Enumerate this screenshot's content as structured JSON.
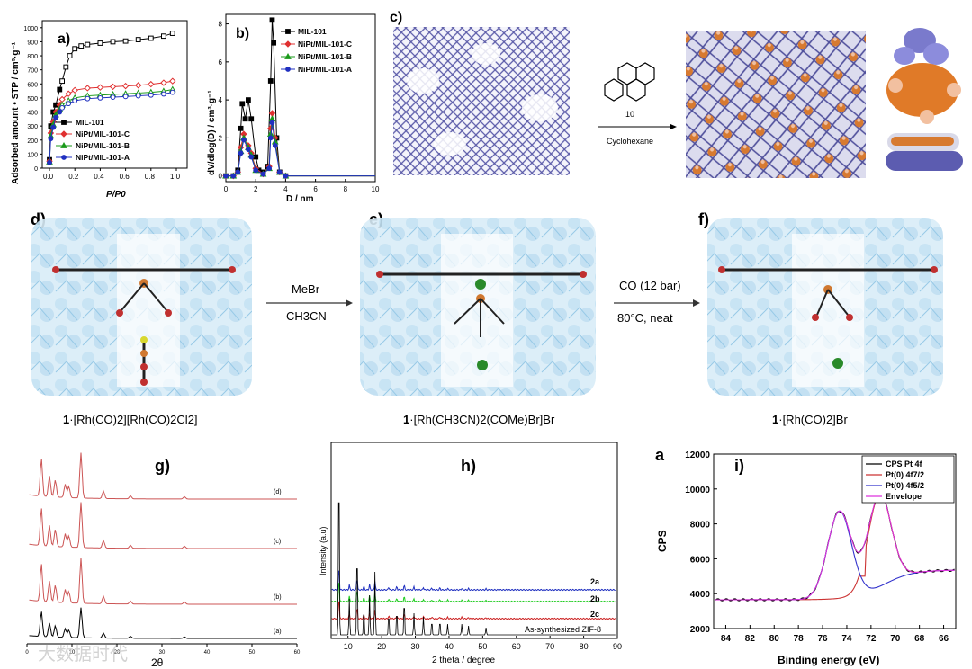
{
  "figure": {
    "panel_letters": {
      "a": "a)",
      "b": "b)",
      "c": "c)",
      "d": "d)",
      "e": "e)",
      "f": "f)",
      "g": "g)",
      "h": "h)",
      "i": "i)",
      "i_alt": "a"
    },
    "watermark": "大数据时代"
  },
  "panel_c": {
    "molecule_number": "10",
    "solvent": "Cyclohexane"
  },
  "panel_def": {
    "arrow1_top": "MeBr",
    "arrow1_bottom": "CH3CN",
    "arrow2_top": "CO (12 bar)",
    "arrow2_bottom": "80°C, neat",
    "caption_d_bold": "1",
    "caption_d": "·[Rh(CO)2][Rh(CO)2Cl2]",
    "caption_e_bold": "1",
    "caption_e": "·[Rh(CH3CN)2(COMe)Br]Br",
    "caption_f_bold": "1",
    "caption_f": "·[Rh(CO)2]Br"
  },
  "chart_data": [
    {
      "id": "a",
      "type": "line",
      "ylabel": "Adsorbed amount • STP / cm³·g⁻¹",
      "xlabel": "P/P0",
      "xlim": [
        0,
        1.05
      ],
      "ylim": [
        0,
        1050
      ],
      "xticks": [
        "0.0",
        "0.2",
        "0.4",
        "0.6",
        "0.8",
        "1.0"
      ],
      "yticks": [
        "0",
        "100",
        "200",
        "300",
        "400",
        "500",
        "600",
        "700",
        "800",
        "900",
        "1000"
      ],
      "series": [
        {
          "name": "MIL-101",
          "color": "#000000",
          "marker": "square",
          "x": [
            0,
            0.01,
            0.03,
            0.05,
            0.08,
            0.1,
            0.13,
            0.16,
            0.2,
            0.25,
            0.3,
            0.4,
            0.5,
            0.6,
            0.7,
            0.8,
            0.9,
            0.97
          ],
          "y": [
            60,
            300,
            400,
            450,
            560,
            620,
            720,
            800,
            850,
            870,
            880,
            890,
            900,
            905,
            915,
            925,
            940,
            960
          ]
        },
        {
          "name": "NiPt/MIL-101-C",
          "color": "#e03030",
          "marker": "diamond",
          "x": [
            0,
            0.01,
            0.03,
            0.05,
            0.08,
            0.1,
            0.15,
            0.2,
            0.3,
            0.4,
            0.5,
            0.6,
            0.7,
            0.8,
            0.9,
            0.97
          ],
          "y": [
            50,
            250,
            330,
            400,
            450,
            490,
            530,
            555,
            570,
            575,
            580,
            585,
            590,
            598,
            608,
            620
          ]
        },
        {
          "name": "NiPt/MIL-101-B",
          "color": "#1a9a1a",
          "marker": "triangle",
          "x": [
            0,
            0.01,
            0.03,
            0.05,
            0.08,
            0.1,
            0.15,
            0.2,
            0.3,
            0.4,
            0.5,
            0.6,
            0.7,
            0.8,
            0.9,
            0.97
          ],
          "y": [
            45,
            230,
            310,
            380,
            420,
            450,
            480,
            500,
            515,
            520,
            525,
            530,
            535,
            540,
            548,
            560
          ]
        },
        {
          "name": "NiPt/MIL-101-A",
          "color": "#2030c0",
          "marker": "circle",
          "x": [
            0,
            0.01,
            0.03,
            0.05,
            0.08,
            0.1,
            0.15,
            0.2,
            0.3,
            0.4,
            0.5,
            0.6,
            0.7,
            0.8,
            0.9,
            0.97
          ],
          "y": [
            40,
            210,
            290,
            360,
            400,
            430,
            460,
            480,
            495,
            500,
            505,
            510,
            515,
            520,
            528,
            540
          ]
        }
      ]
    },
    {
      "id": "b",
      "type": "line",
      "ylabel": "dV/dlog(D) / cm³·g⁻¹",
      "xlabel": "D / nm",
      "xlim": [
        0,
        10
      ],
      "ylim": [
        -0.3,
        8.5
      ],
      "xticks": [
        "0",
        "2",
        "4",
        "6",
        "8",
        "10"
      ],
      "yticks": [
        "0",
        "2",
        "4",
        "6",
        "8"
      ],
      "series": [
        {
          "name": "MIL-101",
          "color": "#000000",
          "marker": "square",
          "x": [
            0,
            0.5,
            0.8,
            1.0,
            1.1,
            1.3,
            1.5,
            1.7,
            2.0,
            2.2,
            2.5,
            2.8,
            3.0,
            3.1,
            3.2,
            3.4,
            3.6,
            4,
            5,
            6,
            8,
            10
          ],
          "y": [
            0,
            0,
            0.3,
            2.5,
            3.8,
            3.0,
            4.0,
            3.0,
            1.0,
            0.3,
            0.2,
            0.5,
            5.0,
            8.2,
            7.0,
            2.0,
            0.2,
            0,
            0,
            0,
            0,
            0
          ]
        },
        {
          "name": "NiPt/MIL-101-C",
          "color": "#e03030",
          "marker": "diamond",
          "x": [
            0,
            0.5,
            0.8,
            1.0,
            1.2,
            1.5,
            1.7,
            2.0,
            2.5,
            2.9,
            3.0,
            3.1,
            3.3,
            3.6,
            4,
            6,
            8,
            10
          ],
          "y": [
            0,
            0,
            0.2,
            1.5,
            2.2,
            1.6,
            1.2,
            0.4,
            0.1,
            0.5,
            2.5,
            3.3,
            2.0,
            0.2,
            0,
            0,
            0,
            0
          ]
        },
        {
          "name": "NiPt/MIL-101-B",
          "color": "#1a9a1a",
          "marker": "triangle",
          "x": [
            0,
            0.5,
            0.8,
            1.0,
            1.2,
            1.5,
            1.7,
            2.0,
            2.5,
            2.9,
            3.0,
            3.1,
            3.3,
            3.6,
            4,
            6,
            8,
            10
          ],
          "y": [
            0,
            0,
            0.2,
            1.3,
            2.0,
            1.5,
            1.1,
            0.3,
            0.1,
            0.4,
            2.2,
            3.0,
            1.8,
            0.2,
            0,
            0,
            0,
            0
          ]
        },
        {
          "name": "NiPt/MIL-101-A",
          "color": "#2030c0",
          "marker": "circle",
          "x": [
            0,
            0.5,
            0.8,
            1.0,
            1.2,
            1.5,
            1.7,
            2.0,
            2.5,
            2.9,
            3.0,
            3.1,
            3.3,
            3.6,
            4,
            6,
            8,
            10
          ],
          "y": [
            0,
            0,
            0.2,
            1.2,
            1.9,
            1.4,
            1.0,
            0.3,
            0.1,
            0.4,
            2.0,
            2.8,
            1.6,
            0.2,
            0,
            0,
            0,
            0
          ]
        }
      ]
    },
    {
      "id": "g",
      "type": "line",
      "xlabel": "2θ",
      "xlim": [
        0,
        60
      ],
      "xticks": [
        "0",
        "10",
        "20",
        "30",
        "40",
        "50",
        "60"
      ],
      "series": [
        {
          "name": "(d)",
          "color": "#cc5555"
        },
        {
          "name": "(c)",
          "color": "#cc5555"
        },
        {
          "name": "(b)",
          "color": "#cc5555"
        },
        {
          "name": "(a)",
          "color": "#000000"
        }
      ]
    },
    {
      "id": "h",
      "type": "line",
      "xlabel": "2 theta / degree",
      "ylabel": "Intensity (a.u)",
      "xlim": [
        5,
        90
      ],
      "xticks": [
        "10",
        "20",
        "30",
        "40",
        "50",
        "60",
        "70",
        "80",
        "90"
      ],
      "series": [
        {
          "name": "2a",
          "color": "#2030c0"
        },
        {
          "name": "2b",
          "color": "#22cc22"
        },
        {
          "name": "2c",
          "color": "#cc2222"
        },
        {
          "name": "As-synthesized ZIF-8",
          "color": "#000000"
        }
      ]
    },
    {
      "id": "i",
      "type": "line",
      "xlabel": "Binding energy (eV)",
      "ylabel": "CPS",
      "xlim": [
        85,
        65
      ],
      "ylim": [
        2000,
        12000
      ],
      "xticks": [
        "84",
        "82",
        "80",
        "78",
        "76",
        "74",
        "72",
        "70",
        "68",
        "66"
      ],
      "yticks": [
        "2000",
        "4000",
        "6000",
        "8000",
        "10000",
        "12000"
      ],
      "series": [
        {
          "name": "CPS Pt 4f",
          "color": "#000000"
        },
        {
          "name": "Pt(0) 4f7/2",
          "color": "#cc3333"
        },
        {
          "name": "Pt(0) 4f5/2",
          "color": "#3333cc"
        },
        {
          "name": "Envelope",
          "color": "#dd33dd"
        }
      ]
    }
  ]
}
